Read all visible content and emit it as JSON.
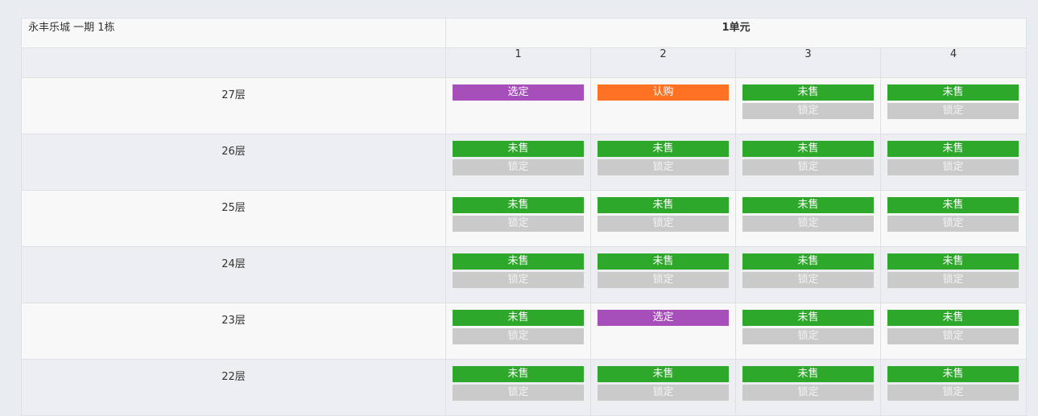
{
  "header": {
    "project": "永丰乐城 一期 1栋",
    "unit": "1单元"
  },
  "room_numbers": [
    "1",
    "2",
    "3",
    "4"
  ],
  "status_colors": {
    "未售": "#2ea82a",
    "锁定": "#cacaca",
    "选定": "#a64fba",
    "认购": "#ff7223"
  },
  "floors": [
    {
      "label": "27层",
      "rooms": [
        {
          "status": "选定",
          "action": ""
        },
        {
          "status": "认购",
          "action": ""
        },
        {
          "status": "未售",
          "action": "锁定"
        },
        {
          "status": "未售",
          "action": "锁定"
        }
      ]
    },
    {
      "label": "26层",
      "rooms": [
        {
          "status": "未售",
          "action": "锁定"
        },
        {
          "status": "未售",
          "action": "锁定"
        },
        {
          "status": "未售",
          "action": "锁定"
        },
        {
          "status": "未售",
          "action": "锁定"
        }
      ]
    },
    {
      "label": "25层",
      "rooms": [
        {
          "status": "未售",
          "action": "锁定"
        },
        {
          "status": "未售",
          "action": "锁定"
        },
        {
          "status": "未售",
          "action": "锁定"
        },
        {
          "status": "未售",
          "action": "锁定"
        }
      ]
    },
    {
      "label": "24层",
      "rooms": [
        {
          "status": "未售",
          "action": "锁定"
        },
        {
          "status": "未售",
          "action": "锁定"
        },
        {
          "status": "未售",
          "action": "锁定"
        },
        {
          "status": "未售",
          "action": "锁定"
        }
      ]
    },
    {
      "label": "23层",
      "rooms": [
        {
          "status": "未售",
          "action": "锁定"
        },
        {
          "status": "选定",
          "action": ""
        },
        {
          "status": "未售",
          "action": "锁定"
        },
        {
          "status": "未售",
          "action": "锁定"
        }
      ]
    },
    {
      "label": "22层",
      "rooms": [
        {
          "status": "未售",
          "action": "锁定"
        },
        {
          "status": "未售",
          "action": "锁定"
        },
        {
          "status": "未售",
          "action": "锁定"
        },
        {
          "status": "未售",
          "action": "锁定"
        }
      ]
    }
  ]
}
